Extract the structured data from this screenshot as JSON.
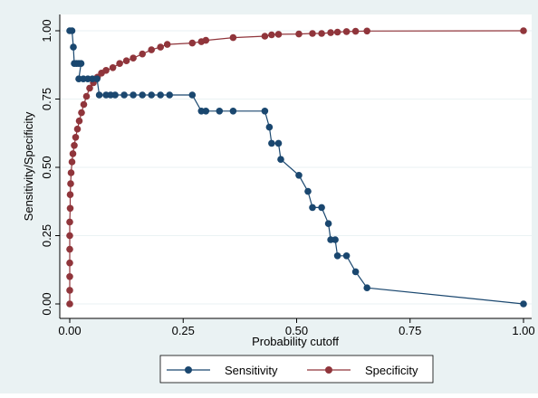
{
  "chart_data": {
    "type": "line",
    "title": "",
    "xlabel": "Probability cutoff",
    "ylabel": "Sensitivity/Specificity",
    "xlim": [
      0,
      1
    ],
    "ylim": [
      0,
      1
    ],
    "xticks": [
      "0.00",
      "0.25",
      "0.50",
      "0.75",
      "1.00"
    ],
    "yticks": [
      "0.00",
      "0.25",
      "0.50",
      "0.75",
      "1.00"
    ],
    "grid": "horizontal",
    "legend_position": "bottom",
    "background_color": "#eaf2f3",
    "series": [
      {
        "name": "Sensitivity",
        "color": "#1a476f",
        "points": [
          [
            0.0,
            1.0
          ],
          [
            0.005,
            1.0
          ],
          [
            0.008,
            0.94
          ],
          [
            0.01,
            0.88
          ],
          [
            0.015,
            0.88
          ],
          [
            0.02,
            0.88
          ],
          [
            0.025,
            0.88
          ],
          [
            0.02,
            0.824
          ],
          [
            0.03,
            0.824
          ],
          [
            0.04,
            0.824
          ],
          [
            0.05,
            0.824
          ],
          [
            0.06,
            0.824
          ],
          [
            0.065,
            0.765
          ],
          [
            0.08,
            0.765
          ],
          [
            0.09,
            0.765
          ],
          [
            0.1,
            0.765
          ],
          [
            0.12,
            0.765
          ],
          [
            0.14,
            0.765
          ],
          [
            0.16,
            0.765
          ],
          [
            0.18,
            0.765
          ],
          [
            0.2,
            0.765
          ],
          [
            0.22,
            0.765
          ],
          [
            0.27,
            0.765
          ],
          [
            0.29,
            0.706
          ],
          [
            0.3,
            0.706
          ],
          [
            0.33,
            0.706
          ],
          [
            0.36,
            0.706
          ],
          [
            0.43,
            0.706
          ],
          [
            0.44,
            0.647
          ],
          [
            0.445,
            0.588
          ],
          [
            0.46,
            0.588
          ],
          [
            0.465,
            0.529
          ],
          [
            0.505,
            0.471
          ],
          [
            0.525,
            0.412
          ],
          [
            0.535,
            0.353
          ],
          [
            0.555,
            0.353
          ],
          [
            0.57,
            0.294
          ],
          [
            0.575,
            0.235
          ],
          [
            0.585,
            0.235
          ],
          [
            0.59,
            0.176
          ],
          [
            0.61,
            0.176
          ],
          [
            0.63,
            0.118
          ],
          [
            0.655,
            0.059
          ],
          [
            1.0,
            0.0
          ]
        ]
      },
      {
        "name": "Specificity",
        "color": "#90353b",
        "points": [
          [
            0.0,
            0.0
          ],
          [
            0.0,
            0.05
          ],
          [
            0.0,
            0.1
          ],
          [
            0.0,
            0.15
          ],
          [
            0.0,
            0.2
          ],
          [
            0.0,
            0.25
          ],
          [
            0.0,
            0.3
          ],
          [
            0.001,
            0.35
          ],
          [
            0.001,
            0.4
          ],
          [
            0.002,
            0.44
          ],
          [
            0.003,
            0.48
          ],
          [
            0.005,
            0.52
          ],
          [
            0.007,
            0.55
          ],
          [
            0.01,
            0.58
          ],
          [
            0.013,
            0.61
          ],
          [
            0.017,
            0.64
          ],
          [
            0.021,
            0.67
          ],
          [
            0.026,
            0.7
          ],
          [
            0.031,
            0.73
          ],
          [
            0.037,
            0.76
          ],
          [
            0.044,
            0.79
          ],
          [
            0.052,
            0.81
          ],
          [
            0.061,
            0.83
          ],
          [
            0.07,
            0.845
          ],
          [
            0.08,
            0.855
          ],
          [
            0.095,
            0.865
          ],
          [
            0.11,
            0.88
          ],
          [
            0.125,
            0.89
          ],
          [
            0.14,
            0.9
          ],
          [
            0.16,
            0.915
          ],
          [
            0.18,
            0.93
          ],
          [
            0.2,
            0.94
          ],
          [
            0.215,
            0.95
          ],
          [
            0.27,
            0.955
          ],
          [
            0.29,
            0.96
          ],
          [
            0.3,
            0.965
          ],
          [
            0.36,
            0.975
          ],
          [
            0.43,
            0.98
          ],
          [
            0.445,
            0.985
          ],
          [
            0.46,
            0.987
          ],
          [
            0.505,
            0.988
          ],
          [
            0.535,
            0.99
          ],
          [
            0.555,
            0.99
          ],
          [
            0.575,
            0.993
          ],
          [
            0.59,
            0.995
          ],
          [
            0.61,
            0.997
          ],
          [
            0.63,
            0.998
          ],
          [
            0.655,
            0.999
          ],
          [
            1.0,
            1.0
          ]
        ]
      }
    ]
  }
}
